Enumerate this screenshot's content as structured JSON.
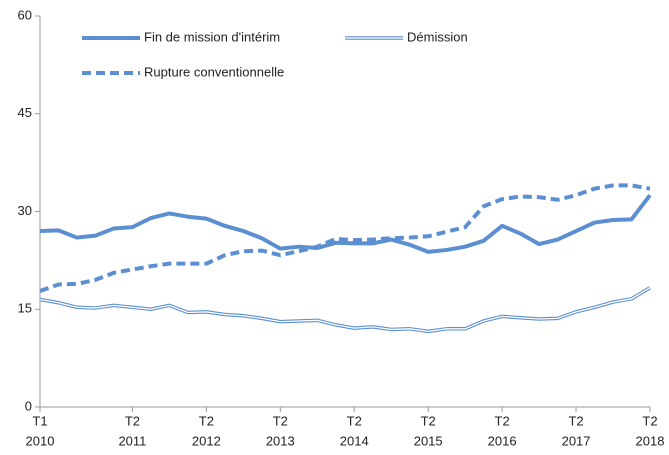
{
  "chart_data": {
    "type": "line",
    "categories": [
      [
        "T1",
        "2010"
      ],
      null,
      null,
      null,
      null,
      [
        "T2",
        "2011"
      ],
      null,
      null,
      null,
      [
        "T2",
        "2012"
      ],
      null,
      null,
      null,
      [
        "T2",
        "2013"
      ],
      null,
      null,
      null,
      [
        "T2",
        "2014"
      ],
      null,
      null,
      null,
      [
        "T2",
        "2015"
      ],
      null,
      null,
      null,
      [
        "T2",
        "2016"
      ],
      null,
      null,
      null,
      [
        "T2",
        "2017"
      ],
      null,
      null,
      null,
      [
        "T2",
        "2018"
      ]
    ],
    "series": [
      {
        "name": "Fin de mission d'intérim",
        "color": "#5b8fd1",
        "style": "solid",
        "values": [
          27,
          27.1,
          26,
          26.3,
          27.4,
          27.6,
          29,
          29.7,
          29.2,
          28.9,
          27.8,
          27,
          25.9,
          24.3,
          24.6,
          24.4,
          25.2,
          25.1,
          25.1,
          25.7,
          24.9,
          23.8,
          24.1,
          24.6,
          25.5,
          27.8,
          26.6,
          25,
          25.7,
          27,
          28.3,
          28.7,
          28.8,
          32.5
        ]
      },
      {
        "name": "Démission",
        "color": "#5b8fd1",
        "style": "double",
        "values": [
          16.5,
          16,
          15.3,
          15.2,
          15.6,
          15.3,
          15,
          15.6,
          14.5,
          14.6,
          14.2,
          14,
          13.6,
          13.1,
          13.2,
          13.3,
          12.6,
          12.1,
          12.3,
          11.9,
          12,
          11.6,
          12,
          12,
          13.2,
          13.9,
          13.7,
          13.5,
          13.6,
          14.6,
          15.3,
          16.1,
          16.6,
          18.3
        ]
      },
      {
        "name": "Rupture conventionnelle",
        "color": "#5b8fd1",
        "style": "dashed",
        "values": [
          17.8,
          18.8,
          18.9,
          19.5,
          20.6,
          21.1,
          21.6,
          22,
          22,
          22,
          23.3,
          23.9,
          24,
          23.3,
          23.9,
          24.6,
          25.8,
          25.6,
          25.7,
          25.9,
          26,
          26.2,
          26.9,
          27.6,
          30.8,
          31.9,
          32.3,
          32.2,
          31.8,
          32.5,
          33.5,
          34,
          34,
          33.5
        ]
      }
    ],
    "ylim": [
      0,
      60
    ],
    "yticks": [
      0,
      15,
      30,
      45,
      60
    ],
    "grid": false
  }
}
